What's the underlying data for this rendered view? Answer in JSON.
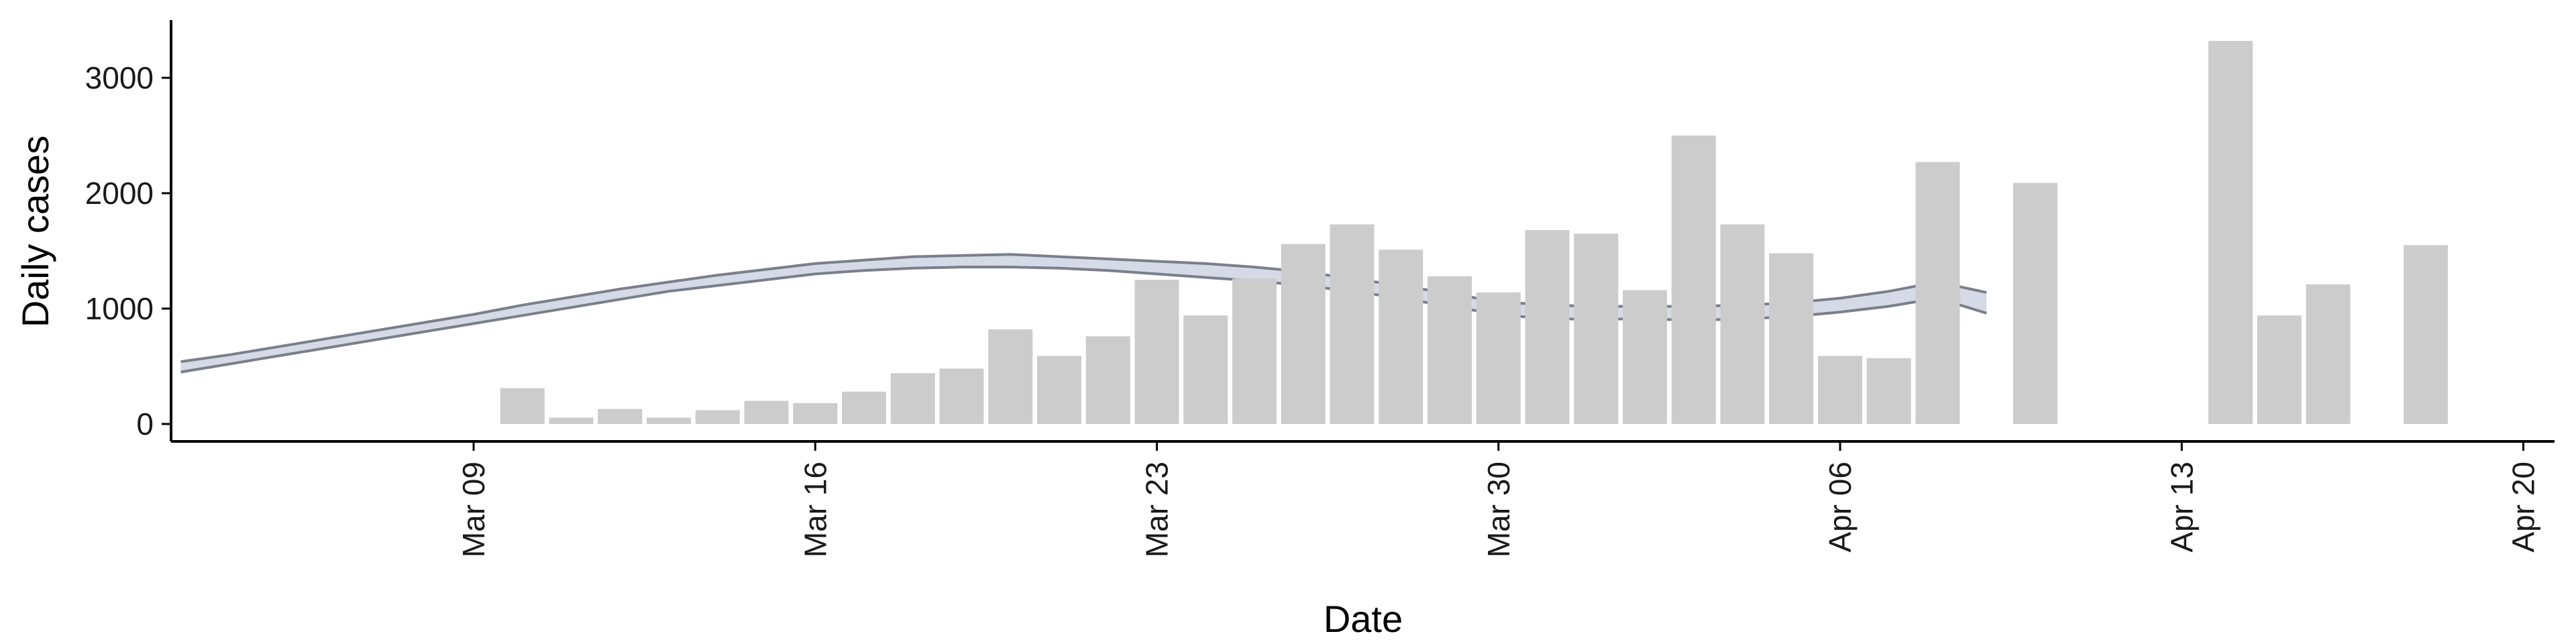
{
  "chart_data": {
    "type": "bar",
    "title": "",
    "xlabel": "Date",
    "ylabel": "Daily cases",
    "ylim": [
      -150,
      3500
    ],
    "yticks": [
      0,
      1000,
      2000,
      3000
    ],
    "xticks": [
      "Mar 09",
      "Mar 16",
      "Mar 23",
      "Mar 30",
      "Apr 06",
      "Apr 13",
      "Apr 20"
    ],
    "grid": false,
    "legend": "none",
    "colors": {
      "bars": "#cccccc",
      "band_fill": "#8a93b8",
      "band_edge": "#6f7280",
      "axis": "#000000"
    },
    "bars": {
      "x": [
        "Mar 10",
        "Mar 11",
        "Mar 12",
        "Mar 13",
        "Mar 14",
        "Mar 15",
        "Mar 16",
        "Mar 17",
        "Mar 18",
        "Mar 19",
        "Mar 20",
        "Mar 21",
        "Mar 22",
        "Mar 23",
        "Mar 24",
        "Mar 25",
        "Mar 26",
        "Mar 27",
        "Mar 28",
        "Mar 29",
        "Mar 30",
        "Mar 31",
        "Apr 01",
        "Apr 02",
        "Apr 03",
        "Apr 04",
        "Apr 05",
        "Apr 06",
        "Apr 07",
        "Apr 08",
        "Apr 10",
        "Apr 14",
        "Apr 15",
        "Apr 16",
        "Apr 18"
      ],
      "values": [
        310,
        55,
        130,
        55,
        120,
        200,
        180,
        280,
        440,
        480,
        820,
        590,
        760,
        1250,
        940,
        1260,
        1560,
        1730,
        1510,
        1280,
        1140,
        1680,
        1650,
        1160,
        2500,
        1730,
        1480,
        590,
        570,
        2270,
        2090,
        3320,
        940,
        1210,
        1550
      ]
    },
    "band": {
      "x": [
        "Mar 03",
        "Mar 04",
        "Mar 05",
        "Mar 06",
        "Mar 07",
        "Mar 08",
        "Mar 09",
        "Mar 10",
        "Mar 11",
        "Mar 12",
        "Mar 13",
        "Mar 14",
        "Mar 15",
        "Mar 16",
        "Mar 17",
        "Mar 18",
        "Mar 19",
        "Mar 20",
        "Mar 21",
        "Mar 22",
        "Mar 23",
        "Mar 24",
        "Mar 25",
        "Mar 26",
        "Mar 27",
        "Mar 28",
        "Mar 29",
        "Mar 30",
        "Mar 31",
        "Apr 01",
        "Apr 02",
        "Apr 03",
        "Apr 04",
        "Apr 05",
        "Apr 06",
        "Apr 07",
        "Apr 08",
        "Apr 09"
      ],
      "upper": [
        540,
        600,
        670,
        740,
        810,
        880,
        950,
        1030,
        1100,
        1170,
        1230,
        1290,
        1340,
        1390,
        1420,
        1450,
        1460,
        1470,
        1450,
        1430,
        1410,
        1390,
        1360,
        1320,
        1260,
        1200,
        1130,
        1060,
        1030,
        1020,
        1020,
        1020,
        1030,
        1050,
        1090,
        1150,
        1230,
        1140
      ],
      "lower": [
        450,
        520,
        590,
        660,
        730,
        800,
        870,
        940,
        1010,
        1080,
        1150,
        1200,
        1250,
        1300,
        1330,
        1350,
        1360,
        1360,
        1350,
        1330,
        1300,
        1270,
        1240,
        1200,
        1150,
        1090,
        1020,
        950,
        910,
        910,
        910,
        900,
        910,
        930,
        970,
        1020,
        1090,
        960
      ]
    }
  }
}
